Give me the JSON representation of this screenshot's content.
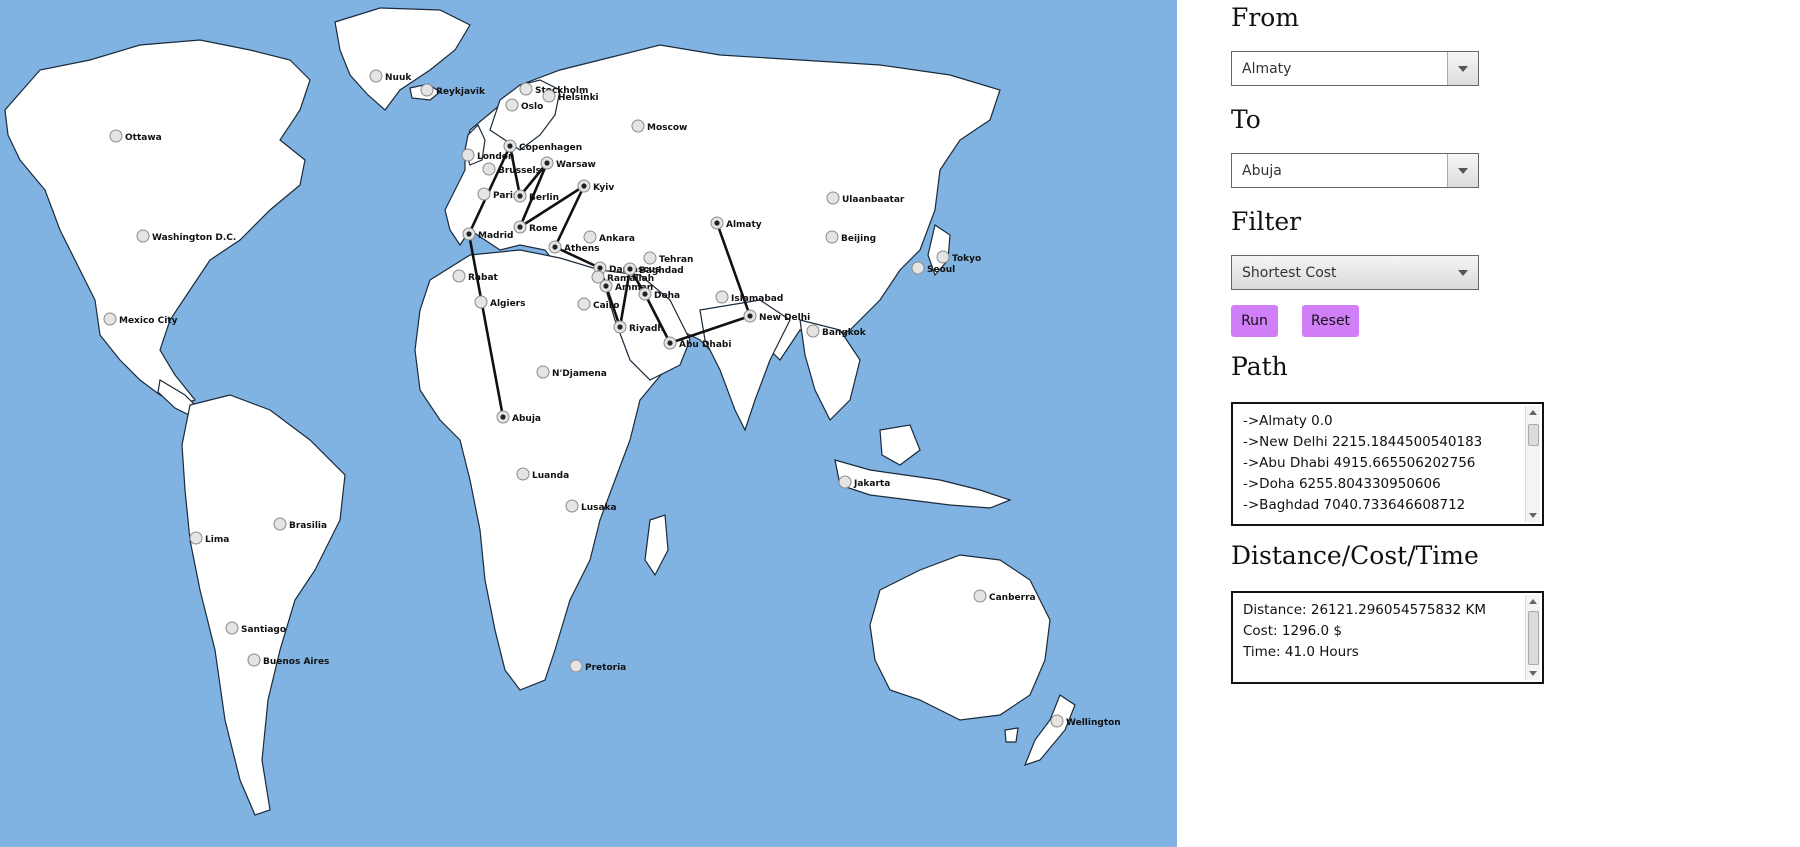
{
  "map": {
    "ocean_color": "#80b3e2",
    "land_color": "#ffffff",
    "route_color": "#111111",
    "cities": [
      {
        "name": "Nuuk"
      },
      {
        "name": "Reykjavik"
      },
      {
        "name": "Stockholm"
      },
      {
        "name": "Helsinki"
      },
      {
        "name": "Oslo"
      },
      {
        "name": "Moscow"
      },
      {
        "name": "Ottawa"
      },
      {
        "name": "London"
      },
      {
        "name": "Copenhagen"
      },
      {
        "name": "Brussels"
      },
      {
        "name": "Warsaw"
      },
      {
        "name": "Paris"
      },
      {
        "name": "Berlin"
      },
      {
        "name": "Kyiv"
      },
      {
        "name": "Washington D.C."
      },
      {
        "name": "Madrid"
      },
      {
        "name": "Rome"
      },
      {
        "name": "Ankara"
      },
      {
        "name": "Athens"
      },
      {
        "name": "Almaty"
      },
      {
        "name": "Ulaanbaatar"
      },
      {
        "name": "Beijing"
      },
      {
        "name": "Tokyo"
      },
      {
        "name": "Seoul"
      },
      {
        "name": "Tehran"
      },
      {
        "name": "Damascus"
      },
      {
        "name": "Baghdad"
      },
      {
        "name": "Ramallah"
      },
      {
        "name": "Amman"
      },
      {
        "name": "Rabat"
      },
      {
        "name": "Doha"
      },
      {
        "name": "Islamabad"
      },
      {
        "name": "Algiers"
      },
      {
        "name": "Cairo"
      },
      {
        "name": "Mexico City"
      },
      {
        "name": "New Delhi"
      },
      {
        "name": "Riyadh"
      },
      {
        "name": "Bangkok"
      },
      {
        "name": "Abu Dhabi"
      },
      {
        "name": "N'Djamena"
      },
      {
        "name": "Abuja"
      },
      {
        "name": "Luanda"
      },
      {
        "name": "Jakarta"
      },
      {
        "name": "Lusaka"
      },
      {
        "name": "Brasilia"
      },
      {
        "name": "Lima"
      },
      {
        "name": "Canberra"
      },
      {
        "name": "Santiago"
      },
      {
        "name": "Buenos Aires"
      },
      {
        "name": "Pretoria"
      },
      {
        "name": "Wellington"
      }
    ],
    "route": [
      "Almaty",
      "New Delhi",
      "Abu Dhabi",
      "Doha",
      "Baghdad",
      "Riyadh",
      "Amman",
      "Damascus",
      "Athens",
      "Kyiv",
      "Rome",
      "Warsaw",
      "Berlin",
      "Copenhagen",
      "Madrid",
      "Abuja"
    ]
  },
  "panel": {
    "from_label": "From",
    "from_value": "Almaty",
    "to_label": "To",
    "to_value": "Abuja",
    "filter_label": "Filter",
    "filter_value": "Shortest Cost",
    "run_label": "Run",
    "reset_label": "Reset",
    "path_label": "Path",
    "path_lines": [
      "->Almaty 0.0",
      "->New Delhi 2215.1844500540183",
      "->Abu Dhabi 4915.665506202756",
      "->Doha 6255.804330950606",
      "->Baghdad 7040.733646608712"
    ],
    "dct_label": "Distance/Cost/Time",
    "dct_lines": [
      "Distance: 26121.296054575832 KM",
      "Cost: 1296.0 $",
      "Time: 41.0 Hours"
    ],
    "accent_color": "#d17ef9"
  }
}
